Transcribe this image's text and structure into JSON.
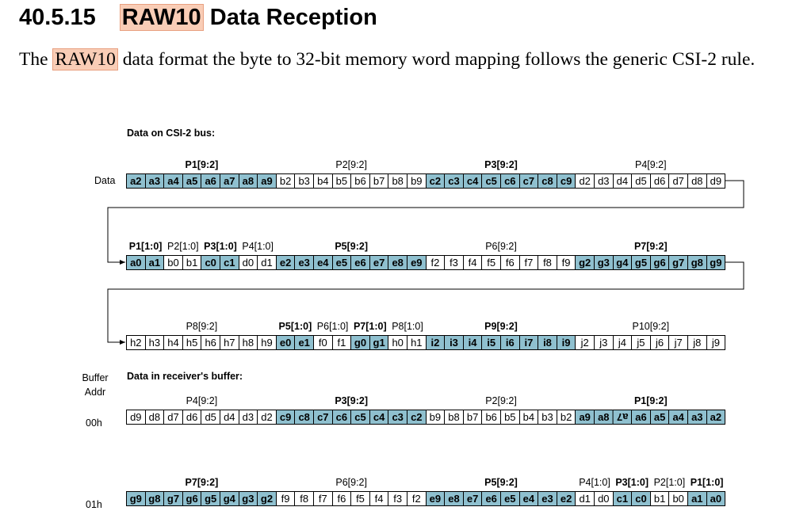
{
  "heading": {
    "number": "40.5.15",
    "highlight": "RAW10",
    "rest": "Data Reception"
  },
  "paragraph": {
    "before": "The ",
    "highlight": "RAW10",
    "after": " data format the byte to 32-bit memory word mapping follows the generic CSI-2 rule."
  },
  "diagram": {
    "bus_title": "Data on CSI-2 bus:",
    "buffer_title": "Data in receiver's buffer:",
    "buffer_addr_label": "Buffer Addr",
    "rows": [
      {
        "label": "Data",
        "groups": [
          {
            "label": "P1[9:2]",
            "highlight": true,
            "cells": [
              "a2",
              "a3",
              "a4",
              "a5",
              "a6",
              "a7",
              "a8",
              "a9"
            ]
          },
          {
            "label": "P2[9:2]",
            "highlight": false,
            "cells": [
              "b2",
              "b3",
              "b4",
              "b5",
              "b6",
              "b7",
              "b8",
              "b9"
            ]
          },
          {
            "label": "P3[9:2]",
            "highlight": true,
            "cells": [
              "c2",
              "c3",
              "c4",
              "c5",
              "c6",
              "c7",
              "c8",
              "c9"
            ]
          },
          {
            "label": "P4[9:2]",
            "highlight": false,
            "cells": [
              "d2",
              "d3",
              "d4",
              "d5",
              "d6",
              "d7",
              "d8",
              "d9"
            ]
          }
        ]
      },
      {
        "groups": [
          {
            "label": "P1[1:0]",
            "highlight": true,
            "cells": [
              "a0",
              "a1"
            ]
          },
          {
            "label": "P2[1:0]",
            "highlight": false,
            "cells": [
              "b0",
              "b1"
            ]
          },
          {
            "label": "P3[1:0]",
            "highlight": true,
            "cells": [
              "c0",
              "c1"
            ]
          },
          {
            "label": "P4[1:0]",
            "highlight": false,
            "cells": [
              "d0",
              "d1"
            ]
          },
          {
            "label": "P5[9:2]",
            "highlight": true,
            "cells": [
              "e2",
              "e3",
              "e4",
              "e5",
              "e6",
              "e7",
              "e8",
              "e9"
            ]
          },
          {
            "label": "P6[9:2]",
            "highlight": false,
            "cells": [
              "f2",
              "f3",
              "f4",
              "f5",
              "f6",
              "f7",
              "f8",
              "f9"
            ]
          },
          {
            "label": "P7[9:2]",
            "highlight": true,
            "cells": [
              "g2",
              "g3",
              "g4",
              "g5",
              "g6",
              "g7",
              "g8",
              "g9"
            ]
          }
        ]
      },
      {
        "groups": [
          {
            "label": "P8[9:2]",
            "highlight": false,
            "cells": [
              "h2",
              "h3",
              "h4",
              "h5",
              "h6",
              "h7",
              "h8",
              "h9"
            ]
          },
          {
            "label": "P5[1:0]",
            "highlight": true,
            "cells": [
              "e0",
              "e1"
            ]
          },
          {
            "label": "P6[1:0]",
            "highlight": false,
            "cells": [
              "f0",
              "f1"
            ]
          },
          {
            "label": "P7[1:0]",
            "highlight": true,
            "cells": [
              "g0",
              "g1"
            ]
          },
          {
            "label": "P8[1:0]",
            "highlight": false,
            "cells": [
              "h0",
              "h1"
            ]
          },
          {
            "label": "P9[9:2]",
            "highlight": true,
            "cells": [
              "i2",
              "i3",
              "i4",
              "i5",
              "i6",
              "i7",
              "i8",
              "i9"
            ]
          },
          {
            "label": "P10[9:2]",
            "highlight": false,
            "cells": [
              "j2",
              "j3",
              "j4",
              "j5",
              "j6",
              "j7",
              "j8",
              "j9"
            ]
          }
        ]
      },
      {
        "label": "00h",
        "groups": [
          {
            "label": "P4[9:2]",
            "highlight": false,
            "cells": [
              "d9",
              "d8",
              "d7",
              "d6",
              "d5",
              "d4",
              "d3",
              "d2"
            ]
          },
          {
            "label": "P3[9:2]",
            "highlight": true,
            "cells": [
              "c9",
              "c8",
              "c7",
              "c6",
              "c5",
              "c4",
              "c3",
              "c2"
            ]
          },
          {
            "label": "P2[9:2]",
            "highlight": false,
            "cells": [
              "b9",
              "b8",
              "b7",
              "b6",
              "b5",
              "b4",
              "b3",
              "b2"
            ]
          },
          {
            "label": "P1[9:2]",
            "highlight": true,
            "cells": [
              "a9",
              "a8",
              "a7",
              "a6",
              "a5",
              "a4",
              "a3",
              "a2"
            ]
          }
        ]
      },
      {
        "label": "01h",
        "groups": [
          {
            "label": "P7[9:2]",
            "highlight": true,
            "cells": [
              "g9",
              "g8",
              "g7",
              "g6",
              "g5",
              "g4",
              "g3",
              "g2"
            ]
          },
          {
            "label": "P6[9:2]",
            "highlight": false,
            "cells": [
              "f9",
              "f8",
              "f7",
              "f6",
              "f5",
              "f4",
              "f3",
              "f2"
            ]
          },
          {
            "label": "P5[9:2]",
            "highlight": true,
            "cells": [
              "e9",
              "e8",
              "e7",
              "e6",
              "e5",
              "e4",
              "e3",
              "e2"
            ]
          },
          {
            "label": "P4[1:0]",
            "highlight": false,
            "cells": [
              "d1",
              "d0"
            ]
          },
          {
            "label": "P3[1:0]",
            "highlight": true,
            "cells": [
              "c1",
              "c0"
            ]
          },
          {
            "label": "P2[1:0]",
            "highlight": false,
            "cells": [
              "b1",
              "b0"
            ]
          },
          {
            "label": "P1[1:0]",
            "highlight": true,
            "cells": [
              "a1",
              "a0"
            ]
          }
        ]
      }
    ]
  }
}
